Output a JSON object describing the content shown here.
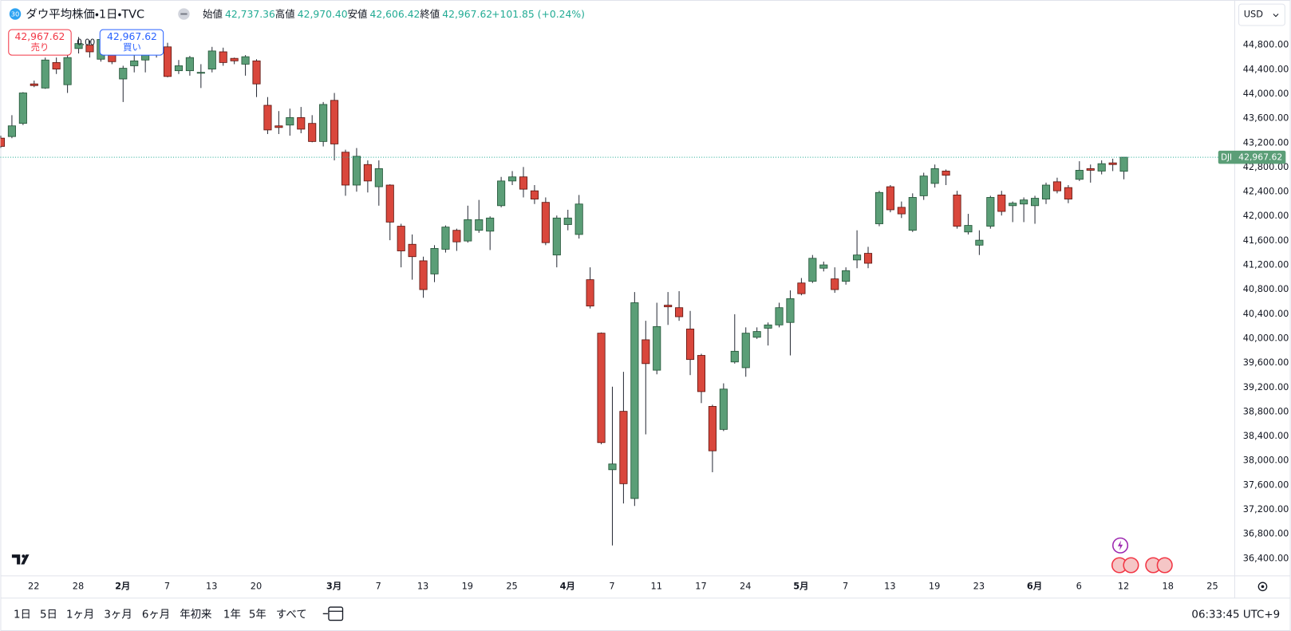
{
  "header": {
    "badge": "30",
    "title": "ダウ平均株価・1日・TVC",
    "ohlc": [
      {
        "label": "始値",
        "value": "42,737.36"
      },
      {
        "label": "高値",
        "value": "42,970.40"
      },
      {
        "label": "安値",
        "value": "42,606.42"
      },
      {
        "label": "終値",
        "value": "42,967.62"
      }
    ],
    "change": "+101.85 (+0.24%)"
  },
  "trade": {
    "sell_price": "42,967.62",
    "sell": "売り",
    "spread": "0.00",
    "buy_price": "42,967.62",
    "buy": "買い"
  },
  "currency": "USD",
  "chart_data": {
    "type": "candlestick",
    "symbol": "DJI",
    "last_label": "42,967.62",
    "up_color": "#5b9e77",
    "down_color": "#d9473c",
    "candles": [
      {
        "o": 43280,
        "h": 43320,
        "l": 43120,
        "c": 43145
      },
      {
        "o": 43306,
        "h": 43656,
        "l": 43279,
        "c": 43481
      },
      {
        "o": 43521,
        "h": 44032,
        "l": 43494,
        "c": 44019
      },
      {
        "o": 44167,
        "h": 44221,
        "l": 44114,
        "c": 44140
      },
      {
        "o": 44100,
        "h": 44598,
        "l": 44087,
        "c": 44558
      },
      {
        "o": 44517,
        "h": 44598,
        "l": 44329,
        "c": 44410
      },
      {
        "o": 44154,
        "h": 44787,
        "l": 44019,
        "c": 44598
      },
      {
        "o": 44746,
        "h": 44935,
        "l": 44665,
        "c": 44827
      },
      {
        "o": 44800,
        "h": 44880,
        "l": 44598,
        "c": 44692
      },
      {
        "o": 44571,
        "h": 44975,
        "l": 44531,
        "c": 44894
      },
      {
        "o": 44638,
        "h": 44733,
        "l": 44490,
        "c": 44531
      },
      {
        "o": 44248,
        "h": 44464,
        "l": 43871,
        "c": 44423
      },
      {
        "o": 44464,
        "h": 44652,
        "l": 44356,
        "c": 44544
      },
      {
        "o": 44558,
        "h": 44800,
        "l": 44356,
        "c": 44638
      },
      {
        "o": 44706,
        "h": 44894,
        "l": 44598,
        "c": 44813
      },
      {
        "o": 44773,
        "h": 44840,
        "l": 44275,
        "c": 44289
      },
      {
        "o": 44383,
        "h": 44558,
        "l": 44329,
        "c": 44464
      },
      {
        "o": 44383,
        "h": 44625,
        "l": 44302,
        "c": 44598
      },
      {
        "o": 44342,
        "h": 44490,
        "l": 44100,
        "c": 44356
      },
      {
        "o": 44410,
        "h": 44773,
        "l": 44356,
        "c": 44706
      },
      {
        "o": 44692,
        "h": 44760,
        "l": 44464,
        "c": 44517
      },
      {
        "o": 44585,
        "h": 44598,
        "l": 44490,
        "c": 44544
      },
      {
        "o": 44490,
        "h": 44638,
        "l": 44302,
        "c": 44612
      },
      {
        "o": 44544,
        "h": 44571,
        "l": 43952,
        "c": 44167
      },
      {
        "o": 43817,
        "h": 43952,
        "l": 43347,
        "c": 43414
      },
      {
        "o": 43481,
        "h": 43723,
        "l": 43347,
        "c": 43454
      },
      {
        "o": 43494,
        "h": 43763,
        "l": 43320,
        "c": 43616
      },
      {
        "o": 43616,
        "h": 43790,
        "l": 43360,
        "c": 43427
      },
      {
        "o": 43521,
        "h": 43656,
        "l": 43212,
        "c": 43225
      },
      {
        "o": 43225,
        "h": 43871,
        "l": 43144,
        "c": 43831
      },
      {
        "o": 43898,
        "h": 44019,
        "l": 42916,
        "c": 43185
      },
      {
        "o": 43050,
        "h": 43091,
        "l": 42337,
        "c": 42512
      },
      {
        "o": 42512,
        "h": 43118,
        "l": 42404,
        "c": 42983
      },
      {
        "o": 42848,
        "h": 42916,
        "l": 42391,
        "c": 42579
      },
      {
        "o": 42485,
        "h": 42916,
        "l": 42175,
        "c": 42781
      },
      {
        "o": 42512,
        "h": 42525,
        "l": 41610,
        "c": 41906
      },
      {
        "o": 41839,
        "h": 41879,
        "l": 41166,
        "c": 41435
      },
      {
        "o": 41543,
        "h": 41704,
        "l": 40964,
        "c": 41341
      },
      {
        "o": 41273,
        "h": 41341,
        "l": 40668,
        "c": 40802
      },
      {
        "o": 41058,
        "h": 41529,
        "l": 40924,
        "c": 41475
      },
      {
        "o": 41462,
        "h": 41852,
        "l": 41408,
        "c": 41825
      },
      {
        "o": 41772,
        "h": 41799,
        "l": 41435,
        "c": 41583
      },
      {
        "o": 41597,
        "h": 42175,
        "l": 41570,
        "c": 41946
      },
      {
        "o": 41772,
        "h": 42269,
        "l": 41731,
        "c": 41946
      },
      {
        "o": 41758,
        "h": 42000,
        "l": 41449,
        "c": 41973
      },
      {
        "o": 42175,
        "h": 42646,
        "l": 42148,
        "c": 42579
      },
      {
        "o": 42579,
        "h": 42741,
        "l": 42512,
        "c": 42646
      },
      {
        "o": 42646,
        "h": 42808,
        "l": 42310,
        "c": 42445
      },
      {
        "o": 42418,
        "h": 42512,
        "l": 42202,
        "c": 42283
      },
      {
        "o": 42229,
        "h": 42310,
        "l": 41529,
        "c": 41570
      },
      {
        "o": 41368,
        "h": 42014,
        "l": 41166,
        "c": 41973
      },
      {
        "o": 41866,
        "h": 42108,
        "l": 41772,
        "c": 41973
      },
      {
        "o": 41704,
        "h": 42350,
        "l": 41637,
        "c": 42202
      },
      {
        "o": 40964,
        "h": 41166,
        "l": 40493,
        "c": 40533
      },
      {
        "o": 40089,
        "h": 40100,
        "l": 38272,
        "c": 38299
      },
      {
        "o": 37855,
        "h": 39214,
        "l": 36616,
        "c": 37949
      },
      {
        "o": 38810,
        "h": 39456,
        "l": 37303,
        "c": 37626
      },
      {
        "o": 37384,
        "h": 40762,
        "l": 37262,
        "c": 40587
      },
      {
        "o": 39981,
        "h": 40291,
        "l": 38434,
        "c": 39591
      },
      {
        "o": 39483,
        "h": 40587,
        "l": 39416,
        "c": 40197
      },
      {
        "o": 40547,
        "h": 40762,
        "l": 40224,
        "c": 40520
      },
      {
        "o": 40506,
        "h": 40776,
        "l": 40291,
        "c": 40358
      },
      {
        "o": 40157,
        "h": 40453,
        "l": 39403,
        "c": 39658
      },
      {
        "o": 39725,
        "h": 39752,
        "l": 38945,
        "c": 39133
      },
      {
        "o": 38891,
        "h": 38918,
        "l": 37814,
        "c": 38164
      },
      {
        "o": 38514,
        "h": 39268,
        "l": 38487,
        "c": 39174
      },
      {
        "o": 39618,
        "h": 40399,
        "l": 39591,
        "c": 39793
      },
      {
        "o": 39524,
        "h": 40184,
        "l": 39376,
        "c": 40089
      },
      {
        "o": 40022,
        "h": 40184,
        "l": 39995,
        "c": 40116
      },
      {
        "o": 40170,
        "h": 40264,
        "l": 39887,
        "c": 40224
      },
      {
        "o": 40224,
        "h": 40587,
        "l": 40184,
        "c": 40506
      },
      {
        "o": 40264,
        "h": 40789,
        "l": 39725,
        "c": 40654
      },
      {
        "o": 40910,
        "h": 40991,
        "l": 40708,
        "c": 40735
      },
      {
        "o": 40937,
        "h": 41368,
        "l": 40910,
        "c": 41314
      },
      {
        "o": 41152,
        "h": 41260,
        "l": 41099,
        "c": 41206
      },
      {
        "o": 40977,
        "h": 41166,
        "l": 40749,
        "c": 40802
      },
      {
        "o": 40937,
        "h": 41166,
        "l": 40883,
        "c": 41112
      },
      {
        "o": 41287,
        "h": 41772,
        "l": 41152,
        "c": 41368
      },
      {
        "o": 41395,
        "h": 41502,
        "l": 41152,
        "c": 41233
      },
      {
        "o": 41879,
        "h": 42418,
        "l": 41839,
        "c": 42391
      },
      {
        "o": 42485,
        "h": 42512,
        "l": 42067,
        "c": 42108
      },
      {
        "o": 42148,
        "h": 42243,
        "l": 41973,
        "c": 42041
      },
      {
        "o": 41772,
        "h": 42377,
        "l": 41745,
        "c": 42310
      },
      {
        "o": 42337,
        "h": 42714,
        "l": 42269,
        "c": 42660
      },
      {
        "o": 42539,
        "h": 42848,
        "l": 42471,
        "c": 42781
      },
      {
        "o": 42741,
        "h": 42767,
        "l": 42512,
        "c": 42673
      },
      {
        "o": 42350,
        "h": 42418,
        "l": 41799,
        "c": 41839
      },
      {
        "o": 41745,
        "h": 42041,
        "l": 41704,
        "c": 41852
      },
      {
        "o": 41529,
        "h": 41772,
        "l": 41368,
        "c": 41610
      },
      {
        "o": 41839,
        "h": 42337,
        "l": 41799,
        "c": 42310
      },
      {
        "o": 42350,
        "h": 42418,
        "l": 42014,
        "c": 42081
      },
      {
        "o": 42175,
        "h": 42243,
        "l": 41906,
        "c": 42216
      },
      {
        "o": 42202,
        "h": 42310,
        "l": 41906,
        "c": 42269
      },
      {
        "o": 42175,
        "h": 42337,
        "l": 41879,
        "c": 42296
      },
      {
        "o": 42283,
        "h": 42552,
        "l": 42202,
        "c": 42512
      },
      {
        "o": 42566,
        "h": 42633,
        "l": 42377,
        "c": 42418
      },
      {
        "o": 42471,
        "h": 42512,
        "l": 42216,
        "c": 42283
      },
      {
        "o": 42606,
        "h": 42902,
        "l": 42579,
        "c": 42754
      },
      {
        "o": 42781,
        "h": 42848,
        "l": 42552,
        "c": 42754
      },
      {
        "o": 42741,
        "h": 42916,
        "l": 42687,
        "c": 42862
      },
      {
        "o": 42875,
        "h": 42943,
        "l": 42741,
        "c": 42848
      },
      {
        "o": 42737.36,
        "h": 42970.4,
        "l": 42606.42,
        "c": 42967.62
      }
    ],
    "xlim": [
      0,
      111
    ],
    "xticks": [
      {
        "value": 3,
        "label": "22"
      },
      {
        "value": 7,
        "label": "28"
      },
      {
        "value": 11,
        "label": "2月"
      },
      {
        "value": 15,
        "label": "7"
      },
      {
        "value": 19,
        "label": "13"
      },
      {
        "value": 23,
        "label": "20"
      },
      {
        "value": 30,
        "label": "3月"
      },
      {
        "value": 34,
        "label": "7"
      },
      {
        "value": 38,
        "label": "13"
      },
      {
        "value": 42,
        "label": "19"
      },
      {
        "value": 46,
        "label": "25"
      },
      {
        "value": 51,
        "label": "4月"
      },
      {
        "value": 55,
        "label": "7"
      },
      {
        "value": 59,
        "label": "11"
      },
      {
        "value": 63,
        "label": "17"
      },
      {
        "value": 67,
        "label": "24"
      },
      {
        "value": 72,
        "label": "5月"
      },
      {
        "value": 76,
        "label": "7"
      },
      {
        "value": 80,
        "label": "13"
      },
      {
        "value": 84,
        "label": "19"
      },
      {
        "value": 88,
        "label": "23"
      },
      {
        "value": 93,
        "label": "6月"
      },
      {
        "value": 97,
        "label": "6"
      },
      {
        "value": 101,
        "label": "12"
      },
      {
        "value": 105,
        "label": "18"
      },
      {
        "value": 109,
        "label": "25"
      }
    ],
    "ylim": [
      36118,
      45540
    ],
    "yticks": [
      {
        "value": 36400,
        "label": "36,400.00"
      },
      {
        "value": 36800,
        "label": "36,800.00"
      },
      {
        "value": 37200,
        "label": "37,200.00"
      },
      {
        "value": 37600,
        "label": "37,600.00"
      },
      {
        "value": 38000,
        "label": "38,000.00"
      },
      {
        "value": 38400,
        "label": "38,400.00"
      },
      {
        "value": 38800,
        "label": "38,800.00"
      },
      {
        "value": 39200,
        "label": "39,200.00"
      },
      {
        "value": 39600,
        "label": "39,600.00"
      },
      {
        "value": 40000,
        "label": "40,000.00"
      },
      {
        "value": 40400,
        "label": "40,400.00"
      },
      {
        "value": 40800,
        "label": "40,800.00"
      },
      {
        "value": 41200,
        "label": "41,200.00"
      },
      {
        "value": 41600,
        "label": "41,600.00"
      },
      {
        "value": 42000,
        "label": "42,000.00"
      },
      {
        "value": 42400,
        "label": "42,400.00"
      },
      {
        "value": 42800,
        "label": "42,800.00"
      },
      {
        "value": 43200,
        "label": "43,200.00"
      },
      {
        "value": 43600,
        "label": "43,600.00"
      },
      {
        "value": 44000,
        "label": "44,000.00"
      },
      {
        "value": 44400,
        "label": "44,400.00"
      },
      {
        "value": 44800,
        "label": "44,800.00"
      }
    ]
  },
  "toolbar": {
    "ranges": [
      "1日",
      "5日",
      "1ヶ月",
      "3ヶ月",
      "6ヶ月",
      "年初来",
      "1年",
      "5年",
      "すべて"
    ],
    "time": "06:33:45 UTC+9"
  }
}
